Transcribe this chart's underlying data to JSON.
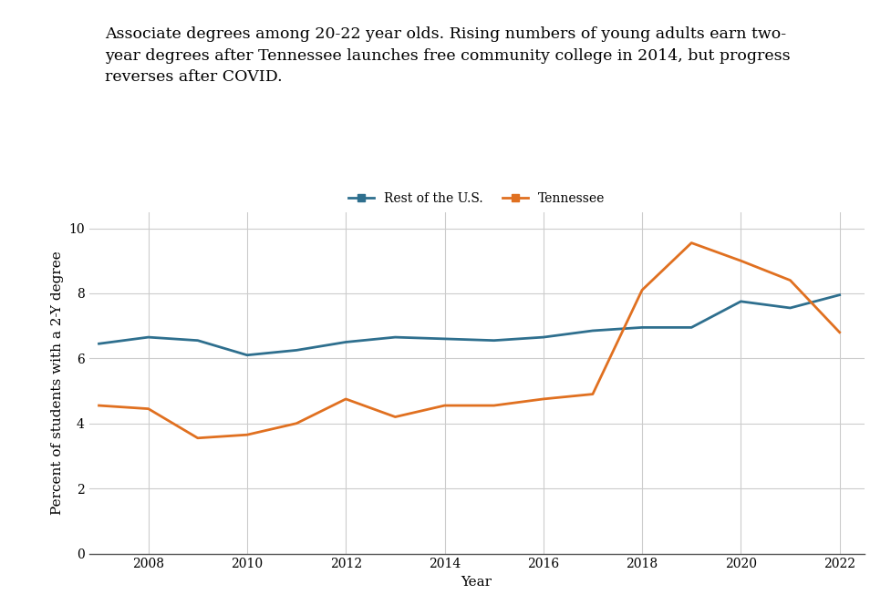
{
  "title_line1": "Associate degrees among 20-22 year olds. Rising numbers of young adults earn two-",
  "title_line2": "year degrees after Tennessee launches free community college in 2014, but progress",
  "title_line3": "reverses after COVID.",
  "xlabel": "Year",
  "ylabel": "Percent of students with a 2-Y degree",
  "us_years": [
    2007,
    2008,
    2009,
    2010,
    2011,
    2012,
    2013,
    2014,
    2015,
    2016,
    2017,
    2018,
    2019,
    2020,
    2021,
    2022
  ],
  "us_values": [
    6.45,
    6.65,
    6.55,
    6.1,
    6.25,
    6.5,
    6.65,
    6.6,
    6.55,
    6.65,
    6.85,
    6.95,
    6.95,
    7.75,
    7.55,
    7.95
  ],
  "tn_years": [
    2007,
    2008,
    2009,
    2010,
    2011,
    2012,
    2013,
    2014,
    2015,
    2016,
    2017,
    2018,
    2019,
    2020,
    2021,
    2022
  ],
  "tn_values": [
    4.55,
    4.45,
    3.55,
    3.65,
    4.0,
    4.75,
    4.2,
    4.55,
    4.55,
    4.75,
    4.9,
    8.1,
    9.55,
    9.0,
    8.4,
    6.8
  ],
  "us_color": "#2e6f8e",
  "tn_color": "#e07020",
  "us_label": "Rest of the U.S.",
  "tn_label": "Tennessee",
  "ylim": [
    0,
    10.5
  ],
  "yticks": [
    0,
    2,
    4,
    6,
    8,
    10
  ],
  "xlim": [
    2006.8,
    2022.5
  ],
  "xticks": [
    2008,
    2010,
    2012,
    2014,
    2016,
    2018,
    2020,
    2022
  ],
  "grid_color": "#cccccc",
  "background_color": "#ffffff",
  "line_width": 2.0,
  "title_fontsize": 12.5,
  "axis_label_fontsize": 11,
  "tick_fontsize": 10,
  "legend_fontsize": 10
}
